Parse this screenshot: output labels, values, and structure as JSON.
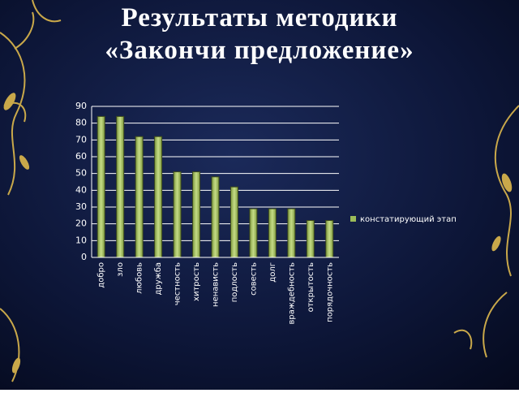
{
  "chart_data": {
    "type": "bar",
    "title": "Результаты методики\n«Закончи предложение»",
    "categories": [
      "добро",
      "зло",
      "любовь",
      "дружба",
      "честность",
      "хитрость",
      "ненависть",
      "подлость",
      "совесть",
      "долг",
      "враждебность",
      "открытость",
      "порядочность"
    ],
    "series": [
      {
        "name": "констатирующий этап",
        "color": "#9bbb59",
        "values": [
          84,
          84,
          72,
          72,
          51,
          51,
          48,
          42,
          29,
          29,
          29,
          22,
          22
        ]
      }
    ],
    "ylim": [
      0,
      90
    ],
    "yticks": [
      0,
      10,
      20,
      30,
      40,
      50,
      60,
      70,
      80,
      90
    ],
    "grid": true,
    "legend": "right"
  }
}
